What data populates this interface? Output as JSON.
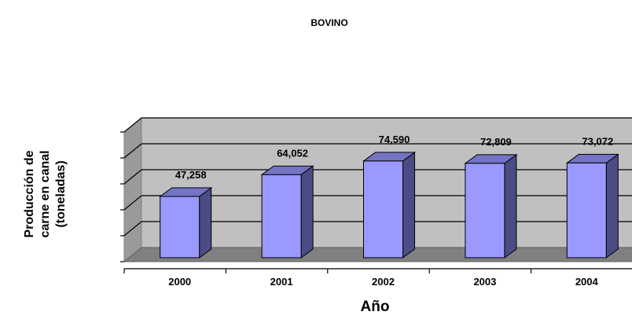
{
  "chart_data": {
    "type": "bar",
    "title": "BOVINO",
    "ylabel_lines": [
      "Producción de",
      "carne en canal",
      "(toneladas)"
    ],
    "xlabel": "Año",
    "categories": [
      "2000",
      "2001",
      "2002",
      "2003",
      "2004"
    ],
    "values": [
      47258,
      64052,
      74590,
      72809,
      73072
    ],
    "data_labels": [
      "47,258",
      "64,052",
      "74,590",
      "72,809",
      "73,072"
    ],
    "ylim": [
      0,
      100000
    ],
    "grid": true,
    "three_d": true
  },
  "colors": {
    "bar_front": "#9999ff",
    "bar_side": "#4b4b85",
    "bar_top": "#7474c4",
    "back_wall": "#c0c0c0",
    "floor": "#808080",
    "side_wall": "#9a9a9a"
  }
}
